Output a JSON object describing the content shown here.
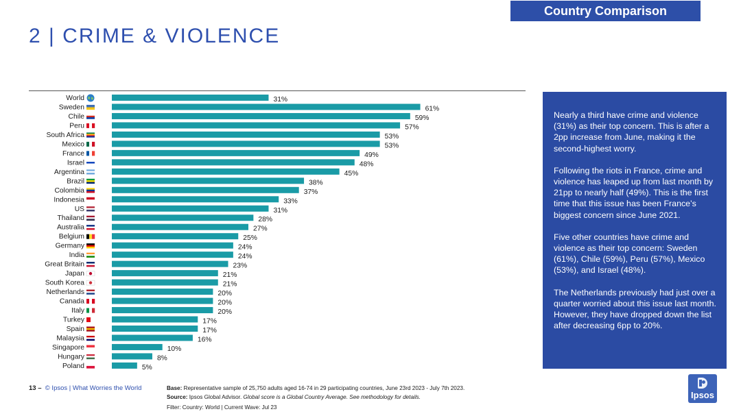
{
  "header": {
    "tag": "Country Comparison",
    "title": "2 | CRIME & VIOLENCE"
  },
  "chart_data": {
    "type": "bar",
    "orientation": "horizontal",
    "categories": [
      "World",
      "Sweden",
      "Chile",
      "Peru",
      "South Africa",
      "Mexico",
      "France",
      "Israel",
      "Argentina",
      "Brazil",
      "Colombia",
      "Indonesia",
      "US",
      "Thailand",
      "Australia",
      "Belgium",
      "Germany",
      "India",
      "Great Britain",
      "Japan",
      "South Korea",
      "Netherlands",
      "Canada",
      "Italy",
      "Turkey",
      "Spain",
      "Malaysia",
      "Singapore",
      "Hungary",
      "Poland"
    ],
    "values": [
      31,
      61,
      59,
      57,
      53,
      53,
      49,
      48,
      45,
      38,
      37,
      33,
      31,
      28,
      27,
      25,
      24,
      24,
      23,
      21,
      21,
      20,
      20,
      20,
      17,
      17,
      16,
      10,
      8,
      5
    ],
    "value_labels": [
      "31%",
      "61%",
      "59%",
      "57%",
      "53%",
      "53%",
      "49%",
      "48%",
      "45%",
      "38%",
      "37%",
      "33%",
      "31%",
      "28%",
      "27%",
      "25%",
      "24%",
      "24%",
      "23%",
      "21%",
      "21%",
      "20%",
      "20%",
      "20%",
      "17%",
      "17%",
      "16%",
      "10%",
      "8%",
      "5%"
    ],
    "bar_color": "#1a9ba6",
    "xlim": [
      0,
      70
    ],
    "grid": false,
    "legend": "none"
  },
  "flags": [
    {
      "name": "globe",
      "colors": [
        "#2a7fc9",
        "#7cc36a"
      ]
    },
    {
      "name": "sweden-flag",
      "colors": [
        "#3f6fb5",
        "#f5c518"
      ]
    },
    {
      "name": "chile-flag",
      "colors": [
        "#ffffff",
        "#d52b1e",
        "#0039a6"
      ]
    },
    {
      "name": "peru-flag",
      "colors": [
        "#d91023",
        "#ffffff",
        "#d91023"
      ]
    },
    {
      "name": "south-africa-flag",
      "colors": [
        "#007a4d",
        "#ffb612",
        "#de3831",
        "#002395"
      ]
    },
    {
      "name": "mexico-flag",
      "colors": [
        "#006847",
        "#ffffff",
        "#ce1126"
      ]
    },
    {
      "name": "france-flag",
      "colors": [
        "#0055a4",
        "#ffffff",
        "#ef4135"
      ]
    },
    {
      "name": "israel-flag",
      "colors": [
        "#ffffff",
        "#0038b8",
        "#ffffff"
      ]
    },
    {
      "name": "argentina-flag",
      "colors": [
        "#74acdf",
        "#ffffff",
        "#74acdf"
      ]
    },
    {
      "name": "brazil-flag",
      "colors": [
        "#009c3b",
        "#ffdf00",
        "#002776"
      ]
    },
    {
      "name": "colombia-flag",
      "colors": [
        "#fcd116",
        "#003893",
        "#ce1126"
      ]
    },
    {
      "name": "indonesia-flag",
      "colors": [
        "#ce1126",
        "#ffffff"
      ]
    },
    {
      "name": "us-flag",
      "colors": [
        "#b22234",
        "#ffffff",
        "#3c3b6e"
      ]
    },
    {
      "name": "thailand-flag",
      "colors": [
        "#a51931",
        "#f4f5f8",
        "#2d2a4a"
      ]
    },
    {
      "name": "australia-flag",
      "colors": [
        "#00247d",
        "#ffffff",
        "#cf142b"
      ]
    },
    {
      "name": "belgium-flag",
      "colors": [
        "#000000",
        "#fdda24",
        "#ef3340"
      ]
    },
    {
      "name": "germany-flag",
      "colors": [
        "#000000",
        "#dd0000",
        "#ffce00"
      ]
    },
    {
      "name": "india-flag",
      "colors": [
        "#ff9933",
        "#ffffff",
        "#138808"
      ]
    },
    {
      "name": "great-britain-flag",
      "colors": [
        "#012169",
        "#ffffff",
        "#c8102e"
      ]
    },
    {
      "name": "japan-flag",
      "colors": [
        "#ffffff",
        "#bc002d"
      ]
    },
    {
      "name": "south-korea-flag",
      "colors": [
        "#ffffff",
        "#cd2e3a",
        "#0047a0"
      ]
    },
    {
      "name": "netherlands-flag",
      "colors": [
        "#ae1c28",
        "#ffffff",
        "#21468b"
      ]
    },
    {
      "name": "canada-flag",
      "colors": [
        "#d80621",
        "#ffffff",
        "#d80621"
      ]
    },
    {
      "name": "italy-flag",
      "colors": [
        "#009246",
        "#ffffff",
        "#ce2b37"
      ]
    },
    {
      "name": "turkey-flag",
      "colors": [
        "#e30a17",
        "#ffffff"
      ]
    },
    {
      "name": "spain-flag",
      "colors": [
        "#aa151b",
        "#f1bf00",
        "#aa151b"
      ]
    },
    {
      "name": "malaysia-flag",
      "colors": [
        "#cc0001",
        "#ffffff",
        "#010066"
      ]
    },
    {
      "name": "singapore-flag",
      "colors": [
        "#ef3340",
        "#ffffff"
      ]
    },
    {
      "name": "hungary-flag",
      "colors": [
        "#cd2a3e",
        "#ffffff",
        "#436f4d"
      ]
    },
    {
      "name": "poland-flag",
      "colors": [
        "#ffffff",
        "#dc143c"
      ]
    }
  ],
  "panel": {
    "p1": "Nearly a third have crime and violence (31%) as their top concern. This is after a 2pp increase from June, making it the second-highest worry.",
    "p2": "Following the riots in France, crime and violence has leaped up from last month by 21pp to nearly half (49%). This is the first time that this issue has been France’s biggest concern since June 2021.",
    "p3": "Five other countries have crime and violence as their top concern: Sweden (61%), Chile (59%), Peru (57%), Mexico (53%), and Israel (48%).",
    "p4": "The Netherlands previously had just over a quarter worried about this issue last month. However, they have dropped down the list after decreasing 6pp to 20%."
  },
  "footer": {
    "page_number": "13",
    "dash": "–",
    "source_line": "© Ipsos | What Worries the World",
    "base_label": "Base:",
    "base_text": "Representative sample of 25,750 adults aged 16-74 in 29 participating countries, June 23rd 2023 - July 7th 2023.",
    "source_label": "Source:",
    "source_text_plain": "Ipsos Global Advisor.",
    "source_text_italic": "Global score is a Global Country Average. See methodology for details.",
    "filter_text": "Filter: Country: World | Current Wave: Jul 23",
    "logo_text": "Ipsos"
  },
  "colors": {
    "accent": "#2e4fae",
    "panel_bg": "#2b4ba3",
    "tag_bg": "#2d4fa8"
  }
}
